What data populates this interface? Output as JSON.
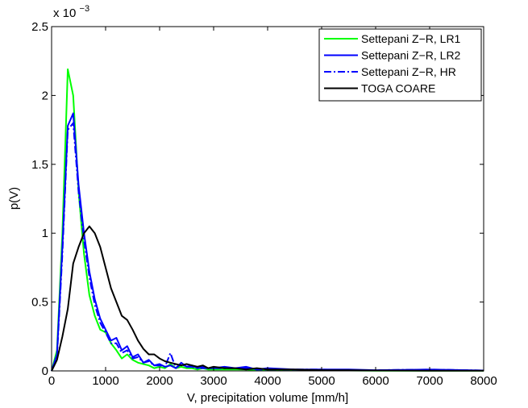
{
  "chart_data": {
    "type": "line",
    "xlabel": "V, precipitation volume [mm/h]",
    "ylabel": "p(V)",
    "exponent_label": "x 10",
    "exponent_power": "−3",
    "xlim": [
      0,
      8000
    ],
    "ylim": [
      0,
      2.5
    ],
    "x_ticks": [
      0,
      1000,
      2000,
      3000,
      4000,
      5000,
      6000,
      7000,
      8000
    ],
    "x_tick_labels": [
      "0",
      "1000",
      "2000",
      "3000",
      "4000",
      "5000",
      "6000",
      "7000",
      "8000"
    ],
    "y_ticks": [
      0,
      0.5,
      1,
      1.5,
      2,
      2.5
    ],
    "y_tick_labels": [
      "0",
      "0.5",
      "1",
      "1.5",
      "2",
      "2.5"
    ],
    "legend_position": "top-right",
    "grid": false,
    "series": [
      {
        "name": "Settepani Z−R, LR1",
        "color": "#00ff00",
        "dash": "solid",
        "x": [
          0,
          100,
          200,
          300,
          400,
          500,
          600,
          700,
          800,
          900,
          1000,
          1100,
          1200,
          1300,
          1400,
          1500,
          1600,
          1700,
          1800,
          1900,
          2000,
          2100,
          2200,
          2300,
          2400,
          2500,
          2600,
          2700,
          2800,
          2900,
          3000,
          3200,
          3400,
          3600,
          3800,
          4000,
          4500,
          5000,
          5500,
          6000,
          7000,
          8000
        ],
        "y": [
          0,
          0.15,
          1.0,
          2.19,
          2.0,
          1.3,
          0.85,
          0.55,
          0.4,
          0.3,
          0.28,
          0.2,
          0.15,
          0.09,
          0.12,
          0.08,
          0.06,
          0.05,
          0.04,
          0.02,
          0.03,
          0.02,
          0.05,
          0.02,
          0.03,
          0.02,
          0.02,
          0.01,
          0.02,
          0.01,
          0.01,
          0.01,
          0.01,
          0.01,
          0.005,
          0.005,
          0.005,
          0.003,
          0.003,
          0.002,
          0.002,
          0.001
        ]
      },
      {
        "name": "Settepani Z−R, LR2",
        "color": "#0000ff",
        "dash": "solid",
        "x": [
          0,
          100,
          200,
          300,
          400,
          500,
          600,
          700,
          800,
          900,
          1000,
          1100,
          1200,
          1300,
          1400,
          1500,
          1600,
          1700,
          1800,
          1900,
          2000,
          2100,
          2200,
          2300,
          2400,
          2500,
          2600,
          2700,
          2800,
          2900,
          3000,
          3200,
          3400,
          3600,
          3800,
          4000,
          4500,
          5000,
          5500,
          6000,
          7000,
          8000
        ],
        "y": [
          0,
          0.12,
          0.9,
          1.78,
          1.87,
          1.35,
          1.0,
          0.72,
          0.52,
          0.38,
          0.3,
          0.22,
          0.24,
          0.15,
          0.18,
          0.1,
          0.12,
          0.06,
          0.08,
          0.04,
          0.05,
          0.03,
          0.04,
          0.02,
          0.06,
          0.03,
          0.04,
          0.02,
          0.03,
          0.02,
          0.02,
          0.03,
          0.02,
          0.03,
          0.01,
          0.02,
          0.01,
          0.01,
          0.01,
          0.005,
          0.01,
          0.003
        ]
      },
      {
        "name": "Settepani Z−R, HR",
        "color": "#0000ff",
        "dash": "dashdot",
        "x": [
          0,
          100,
          200,
          300,
          400,
          500,
          600,
          700,
          800,
          900,
          1000,
          1100,
          1200,
          1300,
          1400,
          1500,
          1600,
          1700,
          1800,
          1900,
          2000,
          2100,
          2200,
          2300,
          2400,
          2500,
          2600,
          2700,
          2800,
          2900,
          3000,
          3200,
          3400,
          3600,
          3800,
          4000,
          4500,
          5000,
          5500,
          6000,
          7000,
          8000
        ],
        "y": [
          0,
          0.1,
          0.85,
          1.75,
          1.8,
          1.3,
          0.95,
          0.68,
          0.48,
          0.35,
          0.28,
          0.2,
          0.2,
          0.13,
          0.15,
          0.09,
          0.1,
          0.06,
          0.07,
          0.04,
          0.04,
          0.03,
          0.13,
          0.02,
          0.05,
          0.03,
          0.03,
          0.02,
          0.02,
          0.02,
          0.02,
          0.02,
          0.02,
          0.02,
          0.01,
          0.01,
          0.01,
          0.01,
          0.005,
          0.005,
          0.01,
          0.003
        ]
      },
      {
        "name": "TOGA COARE",
        "color": "#000000",
        "dash": "solid",
        "x": [
          0,
          100,
          200,
          300,
          400,
          500,
          600,
          700,
          800,
          900,
          1000,
          1100,
          1200,
          1300,
          1400,
          1500,
          1600,
          1700,
          1800,
          1900,
          2000,
          2100,
          2200,
          2300,
          2400,
          2500,
          2600,
          2700,
          2800,
          2900,
          3000,
          3200,
          3400,
          3600,
          3800,
          4000,
          4500,
          5000,
          5500,
          6000,
          7000,
          8000
        ],
        "y": [
          0,
          0.08,
          0.25,
          0.45,
          0.78,
          0.9,
          1.0,
          1.05,
          1.0,
          0.9,
          0.75,
          0.6,
          0.5,
          0.4,
          0.37,
          0.3,
          0.22,
          0.16,
          0.12,
          0.12,
          0.09,
          0.07,
          0.06,
          0.05,
          0.04,
          0.05,
          0.04,
          0.03,
          0.04,
          0.02,
          0.03,
          0.02,
          0.02,
          0.01,
          0.02,
          0.01,
          0.01,
          0.005,
          0.005,
          0.003,
          0.002,
          0.001
        ]
      }
    ]
  }
}
